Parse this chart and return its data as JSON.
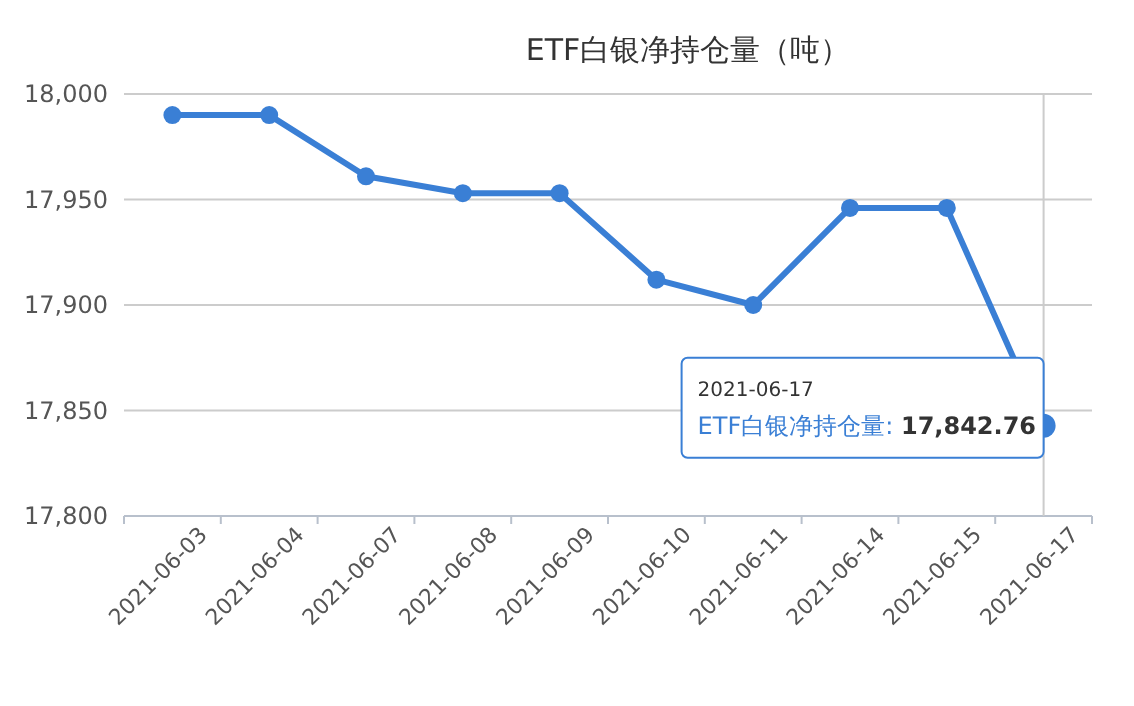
{
  "chart_data": {
    "type": "line",
    "title": "ETF白银净持仓量（吨）",
    "categories": [
      "2021-06-03",
      "2021-06-04",
      "2021-06-07",
      "2021-06-08",
      "2021-06-09",
      "2021-06-10",
      "2021-06-11",
      "2021-06-14",
      "2021-06-15",
      "2021-06-17"
    ],
    "series": [
      {
        "color": "#3a7fd5",
        "values": [
          17990,
          17990,
          17961,
          17953,
          17953,
          17912,
          17900,
          17946,
          17946,
          17842.76
        ],
        "value_labels": [
          null,
          null,
          null,
          null,
          null,
          null,
          null,
          null,
          null,
          "ETF白银净持仓量: 17,842.76"
        ]
      }
    ],
    "ylim": [
      17800,
      18000
    ],
    "yticks": [
      {
        "value": 17800,
        "label": "17,800"
      },
      {
        "value": 17850,
        "label": "17,850"
      },
      {
        "value": 17900,
        "label": "17,900"
      },
      {
        "value": 17950,
        "label": "17,950"
      },
      {
        "value": 18000,
        "label": "18,000"
      }
    ],
    "grid": "y",
    "marker": "circle",
    "line_style": "solid",
    "ref_lines": [
      {
        "axis": "x",
        "value": "2021-06-17",
        "color": "#cccccc"
      }
    ]
  }
}
